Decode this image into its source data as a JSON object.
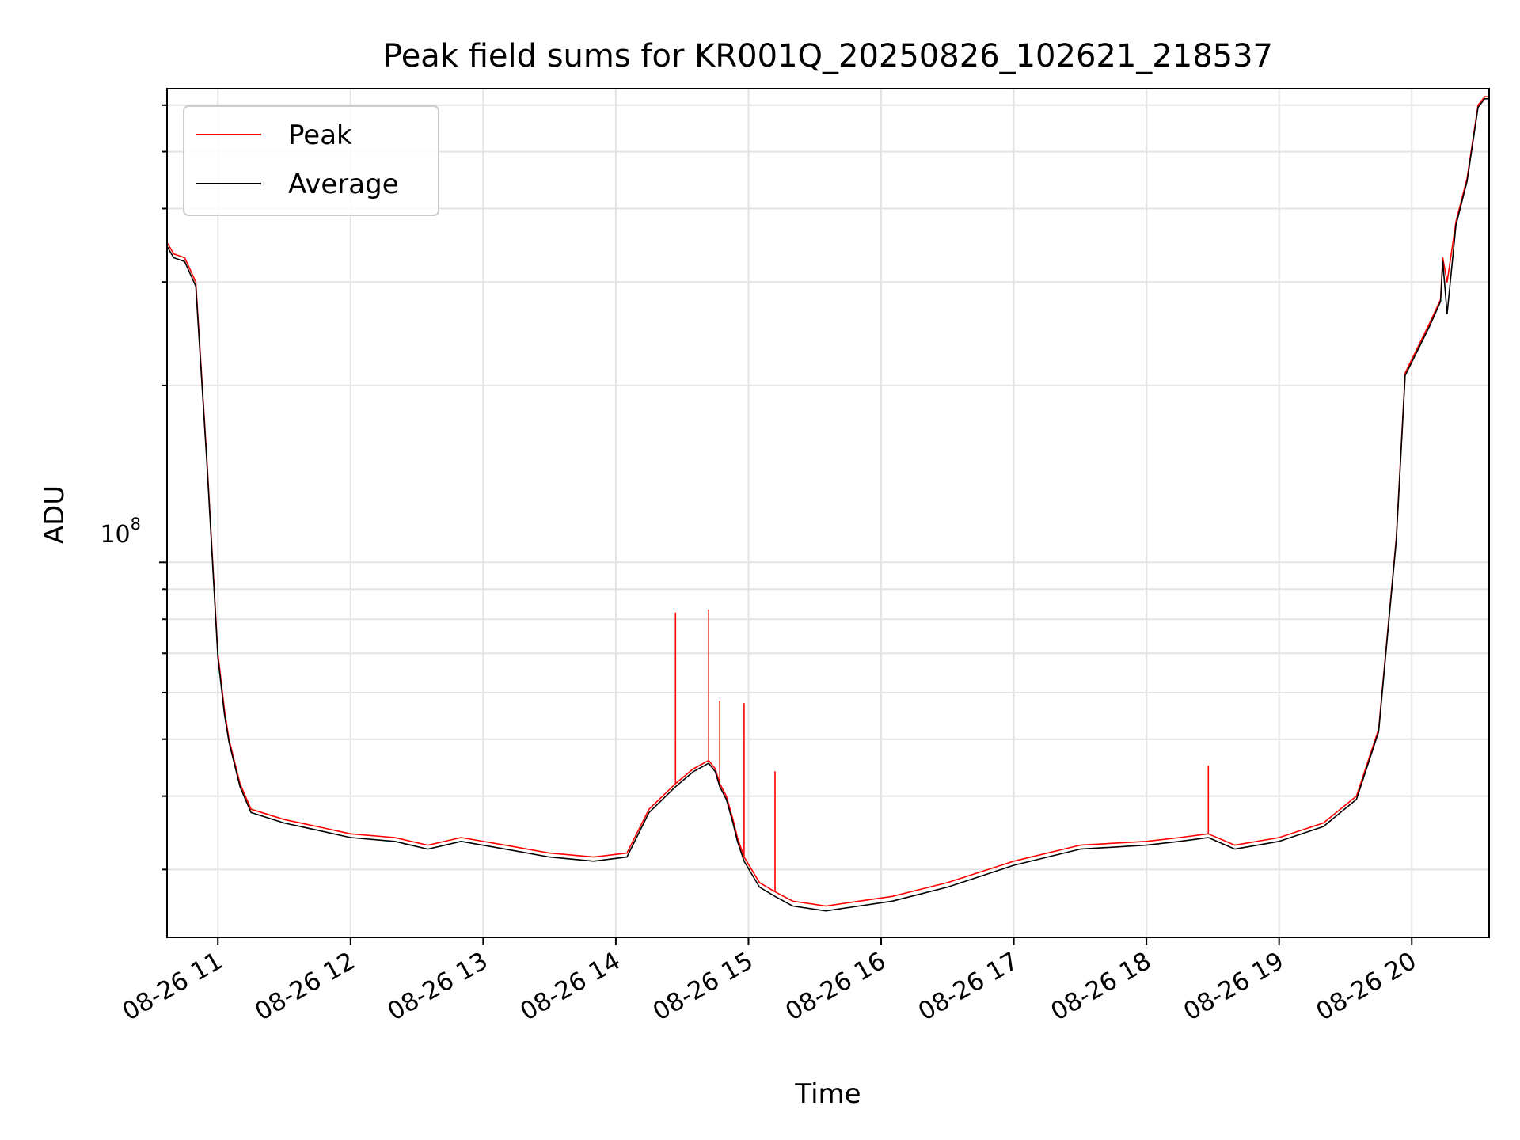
{
  "chart_data": {
    "type": "line",
    "title": "Peak field sums for KR001Q_20250826_102621_218537",
    "xlabel": "Time",
    "ylabel": "ADU",
    "y_scale": "log",
    "y_tick_label_base": "10",
    "y_tick_label_exp": "8",
    "y_tick_value": 100000000,
    "ylim": [
      23000000,
      640000000
    ],
    "xlim": [
      "2025-08-26 10:37",
      "2025-08-26 20:35"
    ],
    "x_ticks": [
      {
        "time": "2025-08-26 11:00",
        "label": "08-26 11"
      },
      {
        "time": "2025-08-26 12:00",
        "label": "08-26 12"
      },
      {
        "time": "2025-08-26 13:00",
        "label": "08-26 13"
      },
      {
        "time": "2025-08-26 14:00",
        "label": "08-26 14"
      },
      {
        "time": "2025-08-26 15:00",
        "label": "08-26 15"
      },
      {
        "time": "2025-08-26 16:00",
        "label": "08-26 16"
      },
      {
        "time": "2025-08-26 17:00",
        "label": "08-26 17"
      },
      {
        "time": "2025-08-26 18:00",
        "label": "08-26 18"
      },
      {
        "time": "2025-08-26 19:00",
        "label": "08-26 19"
      },
      {
        "time": "2025-08-26 20:00",
        "label": "08-26 20"
      }
    ],
    "grid": true,
    "legend_position": "upper-left",
    "series": [
      {
        "name": "Peak",
        "color": "#ff0000",
        "x": [
          "2025-08-26 10:37",
          "2025-08-26 10:40",
          "2025-08-26 10:45",
          "2025-08-26 10:50",
          "2025-08-26 10:55",
          "2025-08-26 11:00",
          "2025-08-26 11:03",
          "2025-08-26 11:05",
          "2025-08-26 11:10",
          "2025-08-26 11:15",
          "2025-08-26 11:30",
          "2025-08-26 11:45",
          "2025-08-26 12:00",
          "2025-08-26 12:20",
          "2025-08-26 12:35",
          "2025-08-26 12:50",
          "2025-08-26 13:10",
          "2025-08-26 13:30",
          "2025-08-26 13:50",
          "2025-08-26 14:05",
          "2025-08-26 14:15",
          "2025-08-26 14:27",
          "2025-08-26 14:27",
          "2025-08-26 14:27",
          "2025-08-26 14:35",
          "2025-08-26 14:42",
          "2025-08-26 14:42",
          "2025-08-26 14:42",
          "2025-08-26 14:45",
          "2025-08-26 14:47",
          "2025-08-26 14:47",
          "2025-08-26 14:47",
          "2025-08-26 14:50",
          "2025-08-26 14:53",
          "2025-08-26 14:55",
          "2025-08-26 14:58",
          "2025-08-26 14:58",
          "2025-08-26 14:58",
          "2025-08-26 15:05",
          "2025-08-26 15:12",
          "2025-08-26 15:12",
          "2025-08-26 15:12",
          "2025-08-26 15:20",
          "2025-08-26 15:35",
          "2025-08-26 15:50",
          "2025-08-26 16:05",
          "2025-08-26 16:30",
          "2025-08-26 17:00",
          "2025-08-26 17:30",
          "2025-08-26 18:00",
          "2025-08-26 18:15",
          "2025-08-26 18:28",
          "2025-08-26 18:28",
          "2025-08-26 18:28",
          "2025-08-26 18:40",
          "2025-08-26 19:00",
          "2025-08-26 19:20",
          "2025-08-26 19:35",
          "2025-08-26 19:45",
          "2025-08-26 19:53",
          "2025-08-26 19:57",
          "2025-08-26 20:08",
          "2025-08-26 20:13",
          "2025-08-26 20:14",
          "2025-08-26 20:16",
          "2025-08-26 20:20",
          "2025-08-26 20:25",
          "2025-08-26 20:30",
          "2025-08-26 20:33",
          "2025-08-26 20:35"
        ],
        "y": [
          350000000,
          335000000,
          330000000,
          300000000,
          150000000,
          70000000,
          56000000,
          50000000,
          42000000,
          38000000,
          36500000,
          35500000,
          34500000,
          34000000,
          33000000,
          34000000,
          33000000,
          32000000,
          31500000,
          32000000,
          38000000,
          42000000,
          82000000,
          42000000,
          44500000,
          46000000,
          83000000,
          46000000,
          44500000,
          42000000,
          58000000,
          42000000,
          40000000,
          36500000,
          34000000,
          31500000,
          57500000,
          31500000,
          28500000,
          27500000,
          44000000,
          27500000,
          26500000,
          26000000,
          26500000,
          27000000,
          28500000,
          31000000,
          33000000,
          33500000,
          34000000,
          34500000,
          45000000,
          34500000,
          33000000,
          34000000,
          36000000,
          40000000,
          52000000,
          110000000,
          210000000,
          255000000,
          280000000,
          330000000,
          300000000,
          380000000,
          450000000,
          600000000,
          620000000,
          620000000
        ]
      },
      {
        "name": "Average",
        "color": "#000000",
        "x": [
          "2025-08-26 10:37",
          "2025-08-26 10:40",
          "2025-08-26 10:45",
          "2025-08-26 10:50",
          "2025-08-26 10:55",
          "2025-08-26 11:00",
          "2025-08-26 11:03",
          "2025-08-26 11:05",
          "2025-08-26 11:10",
          "2025-08-26 11:15",
          "2025-08-26 11:30",
          "2025-08-26 11:45",
          "2025-08-26 12:00",
          "2025-08-26 12:20",
          "2025-08-26 12:35",
          "2025-08-26 12:50",
          "2025-08-26 13:10",
          "2025-08-26 13:30",
          "2025-08-26 13:50",
          "2025-08-26 14:05",
          "2025-08-26 14:15",
          "2025-08-26 14:27",
          "2025-08-26 14:35",
          "2025-08-26 14:42",
          "2025-08-26 14:45",
          "2025-08-26 14:47",
          "2025-08-26 14:50",
          "2025-08-26 14:53",
          "2025-08-26 14:55",
          "2025-08-26 14:58",
          "2025-08-26 15:05",
          "2025-08-26 15:12",
          "2025-08-26 15:20",
          "2025-08-26 15:35",
          "2025-08-26 15:50",
          "2025-08-26 16:05",
          "2025-08-26 16:30",
          "2025-08-26 17:00",
          "2025-08-26 17:30",
          "2025-08-26 18:00",
          "2025-08-26 18:15",
          "2025-08-26 18:28",
          "2025-08-26 18:40",
          "2025-08-26 19:00",
          "2025-08-26 19:20",
          "2025-08-26 19:35",
          "2025-08-26 19:45",
          "2025-08-26 19:53",
          "2025-08-26 19:57",
          "2025-08-26 20:08",
          "2025-08-26 20:13",
          "2025-08-26 20:14",
          "2025-08-26 20:16",
          "2025-08-26 20:20",
          "2025-08-26 20:25",
          "2025-08-26 20:30",
          "2025-08-26 20:33",
          "2025-08-26 20:35"
        ],
        "y": [
          345000000,
          330000000,
          325000000,
          295000000,
          148000000,
          69000000,
          55000000,
          49500000,
          41500000,
          37500000,
          36000000,
          35000000,
          34000000,
          33500000,
          32500000,
          33500000,
          32500000,
          31500000,
          31000000,
          31500000,
          37500000,
          41500000,
          44000000,
          45500000,
          44000000,
          41500000,
          39500000,
          36000000,
          33500000,
          31000000,
          28000000,
          27000000,
          26000000,
          25500000,
          26000000,
          26500000,
          28000000,
          30500000,
          32500000,
          33000000,
          33500000,
          34000000,
          32500000,
          33500000,
          35500000,
          39500000,
          51500000,
          109000000,
          208000000,
          252000000,
          278000000,
          325000000,
          265000000,
          375000000,
          445000000,
          595000000,
          615000000,
          615000000
        ]
      }
    ]
  }
}
